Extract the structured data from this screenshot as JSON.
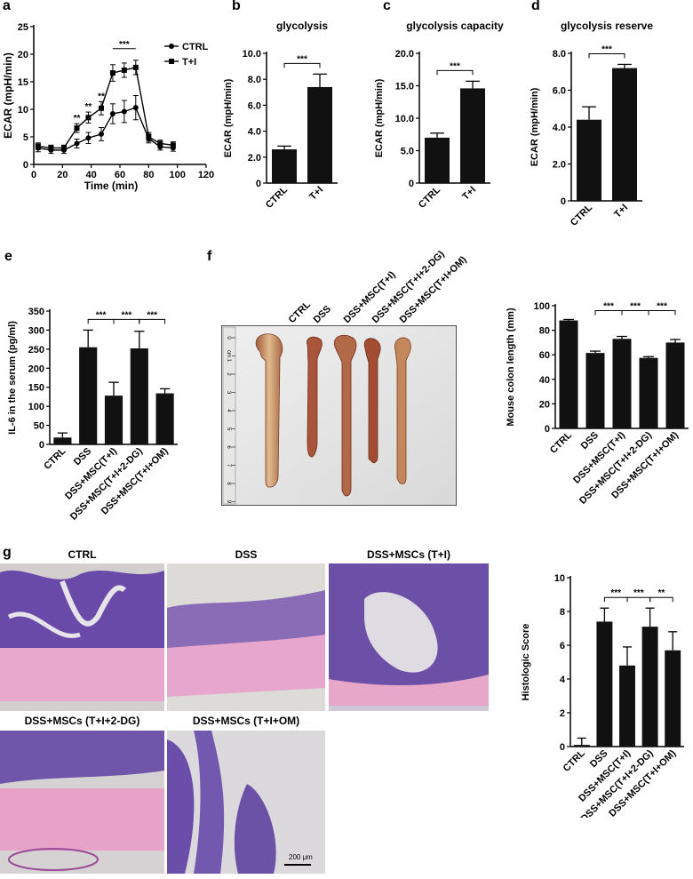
{
  "panels": {
    "a": "a",
    "b": "b",
    "c": "c",
    "d": "d",
    "e": "e",
    "f": "f",
    "g": "g"
  },
  "colors": {
    "bar": "#111111",
    "he_purple": "#5b3f9a",
    "he_pink": "#e7a6cd",
    "he_bg": "#d9d6d6"
  },
  "photo_f": {
    "column_labels": [
      "CTRL",
      "DSS",
      "DSS+MSC(T+I)",
      "DSS+MSC(T+I+2-DG)",
      "DSS+MSC(T+I+OM)"
    ],
    "ruler_numbers": [
      "0",
      "cm 1",
      "2",
      "3",
      "4",
      "5",
      "6",
      "7",
      "8",
      "9"
    ]
  },
  "histology": {
    "titles": [
      "CTRL",
      "DSS",
      "DSS+MSCs (T+I)",
      "DSS+MSCs (T+I+2-DG)",
      "DSS+MSCs (T+I+OM)"
    ],
    "scale_label": "200 μm"
  },
  "chart_data": [
    {
      "id": "a",
      "type": "line",
      "xlabel": "Time (min)",
      "ylabel": "ECAR (mpH/min)",
      "xlim": [
        0,
        120
      ],
      "ylim": [
        0,
        25
      ],
      "xticks": [
        "0",
        "20",
        "40",
        "60",
        "80",
        "100",
        "120"
      ],
      "yticks": [
        "0",
        "5",
        "10",
        "15",
        "20",
        "25"
      ],
      "legend_position": "top-right",
      "series": [
        {
          "name": "CTRL",
          "marker": "circle",
          "x": [
            3,
            12,
            21,
            30,
            38,
            47,
            55,
            63,
            71,
            80,
            88,
            97
          ],
          "y": [
            3.0,
            2.6,
            2.6,
            3.8,
            4.8,
            5.5,
            9.2,
            9.6,
            10.3,
            4.7,
            3.2,
            3.0
          ],
          "err": [
            0.7,
            0.6,
            0.6,
            0.8,
            1.0,
            1.2,
            1.8,
            2.0,
            2.2,
            0.8,
            0.6,
            0.6
          ]
        },
        {
          "name": "T+I",
          "marker": "square",
          "x": [
            3,
            12,
            21,
            30,
            38,
            47,
            55,
            63,
            71,
            80,
            88,
            97
          ],
          "y": [
            3.3,
            3.0,
            3.0,
            6.6,
            8.5,
            10.2,
            16.6,
            17.1,
            17.6,
            5.0,
            3.8,
            3.5
          ],
          "err": [
            0.6,
            0.5,
            0.5,
            0.8,
            1.0,
            1.2,
            1.5,
            1.3,
            1.3,
            0.8,
            0.6,
            0.6
          ]
        }
      ],
      "annotations": [
        {
          "text": "**",
          "x": 30
        },
        {
          "text": "**",
          "x": 38
        },
        {
          "text": "**",
          "x": 47
        },
        {
          "text": "***",
          "x_from": 55,
          "x_to": 71
        }
      ]
    },
    {
      "id": "b",
      "type": "bar",
      "title": "glycolysis",
      "ylabel": "ECAR (mpH/min)",
      "categories": [
        "CTRL",
        "T+I"
      ],
      "values": [
        2.6,
        7.4
      ],
      "err": [
        0.25,
        1.0
      ],
      "ylim": [
        0,
        10
      ],
      "yticks": [
        "0",
        "2.0",
        "4.0",
        "6.0",
        "8.0",
        "10.0"
      ],
      "significance": [
        {
          "from": 0,
          "to": 1,
          "text": "***"
        }
      ]
    },
    {
      "id": "c",
      "type": "bar",
      "title": "glycolysis capacity",
      "ylabel": "ECAR (mpH/min)",
      "categories": [
        "CTRL",
        "T+I"
      ],
      "values": [
        7.0,
        14.6
      ],
      "err": [
        0.7,
        1.1
      ],
      "ylim": [
        0,
        20
      ],
      "yticks": [
        "0",
        "5.0",
        "10.0",
        "15.0",
        "20.0"
      ],
      "significance": [
        {
          "from": 0,
          "to": 1,
          "text": "***"
        }
      ]
    },
    {
      "id": "d",
      "type": "bar",
      "title": "glycolysis reserve",
      "ylabel": "ECAR (mpH/min)",
      "categories": [
        "CTRL",
        "T+I"
      ],
      "values": [
        4.4,
        7.2
      ],
      "err": [
        0.7,
        0.2
      ],
      "ylim": [
        0,
        8
      ],
      "yticks": [
        "0",
        "2.0",
        "4.0",
        "6.0",
        "8.0"
      ],
      "significance": [
        {
          "from": 0,
          "to": 1,
          "text": "***"
        }
      ]
    },
    {
      "id": "e",
      "type": "bar",
      "ylabel": "IL-6 in the serum (pg/ml)",
      "categories": [
        "CTRL",
        "DSS",
        "DSS+MSC(T+I)",
        "DSS+MSC(T+I+2-DG)",
        "DSS+MSC(T+I+OM)"
      ],
      "values": [
        18,
        255,
        128,
        252,
        134
      ],
      "err": [
        12,
        45,
        35,
        45,
        12
      ],
      "ylim": [
        0,
        350
      ],
      "yticks": [
        "0",
        "50",
        "100",
        "150",
        "200",
        "250",
        "300",
        "350"
      ],
      "significance": [
        {
          "from": 1,
          "to": 2,
          "text": "***"
        },
        {
          "from": 2,
          "to": 3,
          "text": "***"
        },
        {
          "from": 3,
          "to": 4,
          "text": "***"
        }
      ]
    },
    {
      "id": "f",
      "type": "bar",
      "ylabel": "Mouse colon length (mm)",
      "categories": [
        "CTRL",
        "DSS",
        "DSS+MSC(T+I)",
        "DSS+MSC(T+I+2-DG)",
        "DSS+MSC(T+I+OM)"
      ],
      "values": [
        88,
        61.5,
        73,
        57.5,
        70
      ],
      "err": [
        0.8,
        1.5,
        2,
        1,
        2.5
      ],
      "ylim": [
        0,
        100
      ],
      "yticks": [
        "0",
        "20",
        "40",
        "60",
        "80",
        "100"
      ],
      "significance": [
        {
          "from": 1,
          "to": 2,
          "text": "***"
        },
        {
          "from": 2,
          "to": 3,
          "text": "***"
        },
        {
          "from": 3,
          "to": 4,
          "text": "***"
        }
      ]
    },
    {
      "id": "g",
      "type": "bar",
      "ylabel": "Histologic Score",
      "categories": [
        "CTRL",
        "DSS",
        "DSS+MSC(T+I)",
        "DSS+MSC(T+I+2-DG)",
        "DSS+MSC(T+I+OM)"
      ],
      "values": [
        0.1,
        7.4,
        4.8,
        7.1,
        5.7
      ],
      "err": [
        0.4,
        0.8,
        1.1,
        1.1,
        1.1
      ],
      "ylim": [
        0,
        10
      ],
      "yticks": [
        "0",
        "2",
        "4",
        "6",
        "8",
        "10"
      ],
      "significance": [
        {
          "from": 1,
          "to": 2,
          "text": "***"
        },
        {
          "from": 2,
          "to": 3,
          "text": "***"
        },
        {
          "from": 3,
          "to": 4,
          "text": "**"
        }
      ]
    }
  ]
}
